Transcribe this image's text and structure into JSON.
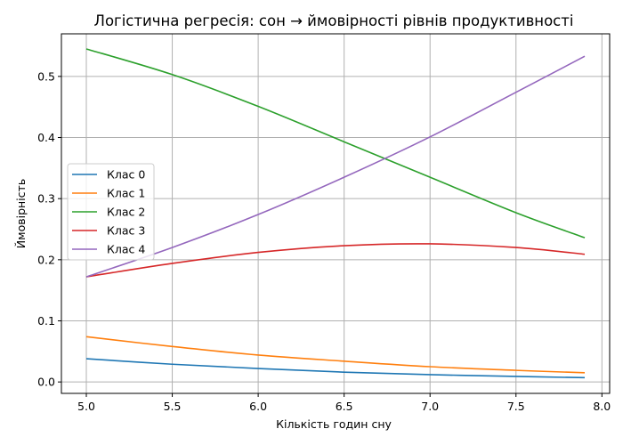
{
  "chart_data": {
    "type": "line",
    "title": "Логістична регресія: сон → ймовірності рівнів продуктивності",
    "xlabel": "Кількість годин сну",
    "ylabel": "Ймовірність",
    "xlim": [
      4.855,
      8.045
    ],
    "ylim": [
      -0.0187,
      0.5697
    ],
    "xticks": [
      5.0,
      5.5,
      6.0,
      6.5,
      7.0,
      7.5,
      8.0
    ],
    "yticks": [
      0.0,
      0.1,
      0.2,
      0.3,
      0.4,
      0.5
    ],
    "grid": true,
    "legend_position": "center-left",
    "x": [
      5.0,
      5.5,
      6.0,
      6.5,
      7.0,
      7.5,
      7.9
    ],
    "series": [
      {
        "name": "Клас 0",
        "color": "#1f77b4",
        "values": [
          0.038,
          0.029,
          0.022,
          0.016,
          0.012,
          0.009,
          0.007
        ]
      },
      {
        "name": "Клас 1",
        "color": "#ff7f0e",
        "values": [
          0.074,
          0.058,
          0.044,
          0.034,
          0.025,
          0.019,
          0.015
        ]
      },
      {
        "name": "Клас 2",
        "color": "#2ca02c",
        "values": [
          0.545,
          0.503,
          0.451,
          0.393,
          0.335,
          0.277,
          0.236
        ]
      },
      {
        "name": "Клас 3",
        "color": "#d62728",
        "values": [
          0.172,
          0.194,
          0.212,
          0.223,
          0.226,
          0.22,
          0.209
        ]
      },
      {
        "name": "Клас 4",
        "color": "#9467bd",
        "values": [
          0.172,
          0.22,
          0.274,
          0.335,
          0.401,
          0.474,
          0.533
        ]
      }
    ]
  }
}
